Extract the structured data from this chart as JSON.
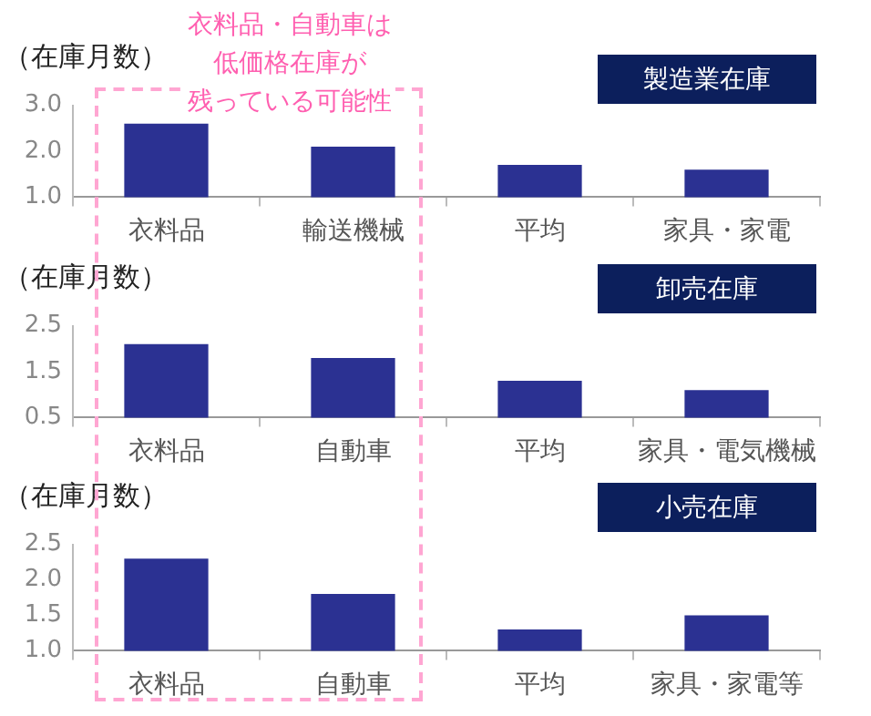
{
  "chart_data": [
    {
      "type": "bar",
      "title": "製造業在庫",
      "ylabel": "（在庫月数）",
      "categories": [
        "衣料品",
        "輸送機械",
        "平均",
        "家具・家電"
      ],
      "values": [
        2.6,
        2.1,
        1.7,
        1.6
      ],
      "color": "#2b3192",
      "ylim": [
        1,
        3
      ],
      "yticks": [
        {
          "value": 1,
          "label": "1.0"
        },
        {
          "value": 2,
          "label": "2.0"
        },
        {
          "value": 3,
          "label": "3.0"
        }
      ],
      "grid": false,
      "legend": false,
      "annotations": [
        "衣料品・自動車は",
        "低価格在庫が",
        "残っている可能性"
      ]
    },
    {
      "type": "bar",
      "title": "卸売在庫",
      "ylabel": "（在庫月数）",
      "categories": [
        "衣料品",
        "自動車",
        "平均",
        "家具・電気機械"
      ],
      "values": [
        2.1,
        1.8,
        1.3,
        1.1
      ],
      "color": "#2b3192",
      "ylim": [
        0.5,
        2.5
      ],
      "yticks": [
        0.5,
        1.5,
        2.5
      ],
      "grid": false,
      "legend": false
    },
    {
      "type": "bar",
      "title": "小売在庫",
      "ylabel": "（在庫月数）",
      "categories": [
        "衣料品",
        "自動車",
        "平均",
        "家具・家電等"
      ],
      "values": [
        2.3,
        1.8,
        1.3,
        1.5
      ],
      "color": "#2b3192",
      "ylim": [
        1,
        2.5
      ],
      "yticks": [
        {
          "value": 1,
          "label": "1.0"
        },
        1.5,
        {
          "value": 2,
          "label": "2.0"
        },
        2.5
      ],
      "grid": false,
      "legend": false
    }
  ]
}
